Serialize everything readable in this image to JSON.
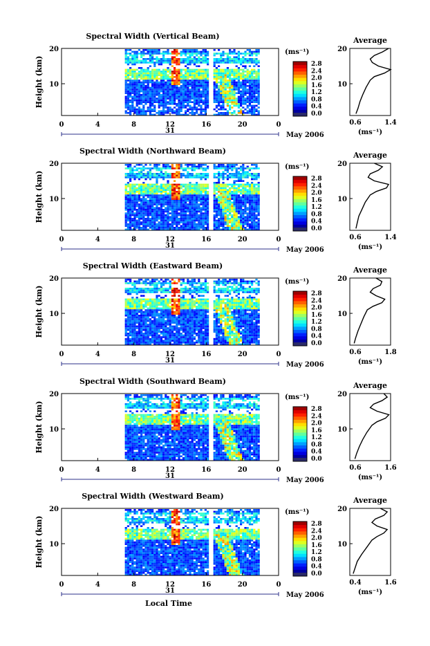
{
  "figure": {
    "x_axis_label": "Local Time",
    "date_center_label": "31",
    "date_right_label": "May 2006",
    "y_axis_label": "Height (km)",
    "unit_label": "(ms⁻¹)",
    "avg_title": "Average",
    "x_ticks": [
      "0",
      "4",
      "8",
      "12",
      "16",
      "20",
      "0"
    ],
    "y_ticks": [
      "20",
      "10"
    ],
    "colorbar_ticks": [
      "2.8",
      "2.4",
      "2.0",
      "1.6",
      "1.2",
      "0.8",
      "0.4",
      "0.0"
    ]
  },
  "chart_data": [
    {
      "type": "heatmap",
      "title": "Spectral Width (Vertical Beam)",
      "xlabel": "",
      "ylabel": "Height (km)",
      "xlim": [
        0,
        24
      ],
      "ylim": [
        1,
        20
      ],
      "data_time_range": [
        7.0,
        21.8
      ],
      "data_gap": [
        16.2,
        16.6
      ],
      "colorbar": {
        "label": "(ms⁻¹)",
        "range": [
          0.0,
          3.0
        ]
      },
      "average_profile": {
        "title": "Average",
        "xlabel": "(ms⁻¹)",
        "xlim": [
          0.4,
          1.4
        ],
        "x_ticks": [
          "0.6",
          "1.4"
        ],
        "heights": [
          1.5,
          3,
          5,
          7,
          9,
          11,
          12,
          13,
          14,
          15,
          16,
          17,
          18,
          19,
          20
        ],
        "values": [
          0.55,
          0.6,
          0.65,
          0.72,
          0.8,
          0.9,
          1.0,
          1.25,
          1.4,
          1.1,
          0.95,
          0.9,
          1.0,
          1.2,
          1.35
        ]
      }
    },
    {
      "type": "heatmap",
      "title": "Spectral Width (Northward Beam)",
      "xlabel": "",
      "ylabel": "Height (km)",
      "xlim": [
        0,
        24
      ],
      "ylim": [
        1,
        20
      ],
      "data_time_range": [
        7.0,
        21.8
      ],
      "data_gap": [
        16.2,
        16.6
      ],
      "colorbar": {
        "label": "(ms⁻¹)",
        "range": [
          0.0,
          3.0
        ]
      },
      "average_profile": {
        "title": "Average",
        "xlabel": "(ms⁻¹)",
        "xlim": [
          0.4,
          1.4
        ],
        "x_ticks": [
          "0.6",
          "1.4"
        ],
        "heights": [
          1.5,
          3,
          5,
          7,
          9,
          11,
          12,
          13,
          14,
          15,
          16,
          17,
          18,
          19,
          20
        ],
        "values": [
          0.55,
          0.58,
          0.62,
          0.7,
          0.78,
          0.9,
          1.05,
          1.3,
          1.35,
          1.0,
          0.85,
          0.9,
          1.1,
          1.2,
          1.0
        ]
      }
    },
    {
      "type": "heatmap",
      "title": "Spectral Width (Eastward Beam)",
      "xlabel": "",
      "ylabel": "Height (km)",
      "xlim": [
        0,
        24
      ],
      "ylim": [
        1,
        20
      ],
      "data_time_range": [
        7.0,
        21.8
      ],
      "data_gap": [
        16.2,
        16.6
      ],
      "colorbar": {
        "label": "(ms⁻¹)",
        "range": [
          0.0,
          3.0
        ]
      },
      "average_profile": {
        "title": "Average",
        "xlabel": "(ms⁻¹)",
        "xlim": [
          0.4,
          1.8
        ],
        "x_ticks": [
          "0.6",
          "1.8"
        ],
        "heights": [
          1.5,
          3,
          5,
          7,
          9,
          11,
          12,
          13,
          14,
          15,
          16,
          17,
          18,
          19,
          20
        ],
        "values": [
          0.55,
          0.6,
          0.68,
          0.78,
          0.88,
          1.0,
          1.2,
          1.5,
          1.6,
          1.3,
          1.1,
          1.2,
          1.45,
          1.5,
          1.3
        ]
      }
    },
    {
      "type": "heatmap",
      "title": "Spectral Width (Southward Beam)",
      "xlabel": "",
      "ylabel": "Height (km)",
      "xlim": [
        0,
        24
      ],
      "ylim": [
        1,
        20
      ],
      "data_time_range": [
        7.0,
        21.8
      ],
      "data_gap": [
        16.2,
        16.6
      ],
      "colorbar": {
        "label": "(ms⁻¹)",
        "range": [
          0.0,
          3.0
        ]
      },
      "average_profile": {
        "title": "Average",
        "xlabel": "(ms⁻¹)",
        "xlim": [
          0.4,
          1.6
        ],
        "x_ticks": [
          "0.6",
          "1.6"
        ],
        "heights": [
          1.5,
          3,
          5,
          7,
          9,
          11,
          12,
          13,
          14,
          15,
          16,
          17,
          18,
          19,
          20
        ],
        "values": [
          0.55,
          0.6,
          0.68,
          0.78,
          0.9,
          1.05,
          1.2,
          1.45,
          1.55,
          1.2,
          1.0,
          1.1,
          1.35,
          1.5,
          1.4
        ]
      }
    },
    {
      "type": "heatmap",
      "title": "Spectral Width (Westward Beam)",
      "xlabel": "Local Time",
      "ylabel": "Height (km)",
      "xlim": [
        0,
        24
      ],
      "ylim": [
        1,
        20
      ],
      "data_time_range": [
        7.0,
        21.8
      ],
      "data_gap": [
        16.2,
        16.6
      ],
      "colorbar": {
        "label": "(ms⁻¹)",
        "range": [
          0.0,
          3.0
        ]
      },
      "average_profile": {
        "title": "Average",
        "xlabel": "(ms⁻¹)",
        "xlim": [
          0.4,
          1.6
        ],
        "x_ticks": [
          "0.4",
          "1.6"
        ],
        "heights": [
          1.5,
          3,
          5,
          7,
          9,
          11,
          12,
          13,
          14,
          15,
          16,
          17,
          18,
          19,
          20
        ],
        "values": [
          0.5,
          0.55,
          0.62,
          0.75,
          0.9,
          1.05,
          1.2,
          1.4,
          1.5,
          1.2,
          1.05,
          1.15,
          1.4,
          1.5,
          1.3
        ]
      }
    }
  ]
}
